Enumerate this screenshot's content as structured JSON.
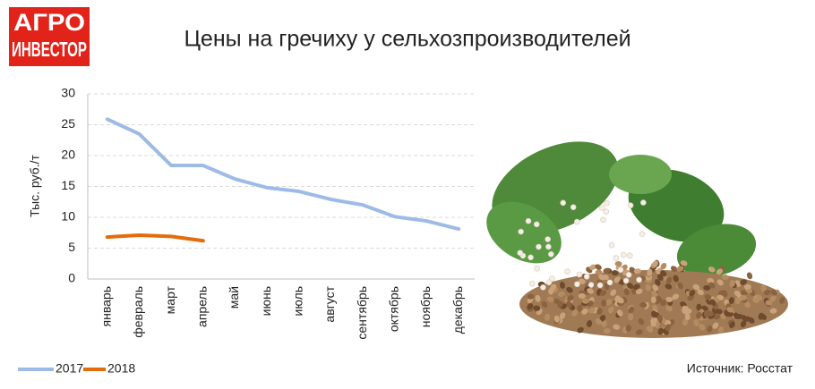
{
  "logo": {
    "line1": "АГРО",
    "line2": "ИНВЕСТОР"
  },
  "chart_data": {
    "type": "line",
    "title": "Цены на гречиху у сельхозпроизводителей",
    "y_label": "Тыс. руб./т",
    "source": "Источник: Росстат",
    "categories": [
      "январь",
      "февраль",
      "март",
      "апрель",
      "май",
      "июнь",
      "июль",
      "август",
      "сентябрь",
      "октябрь",
      "ноябрь",
      "декабрь"
    ],
    "series": [
      {
        "name": "2017",
        "color": "#9dbbe6",
        "values": [
          25.9,
          23.5,
          18.4,
          18.4,
          16.2,
          14.8,
          14.2,
          12.9,
          12.0,
          10.1,
          9.4,
          8.1
        ]
      },
      {
        "name": "2018",
        "color": "#e46c0a",
        "values": [
          6.8,
          7.1,
          6.9,
          6.2,
          null,
          null,
          null,
          null,
          null,
          null,
          null,
          null
        ]
      }
    ],
    "ylim": [
      0,
      30
    ],
    "yticks": [
      0,
      5,
      10,
      15,
      20,
      25,
      30
    ],
    "grid": true,
    "legend": "bottom-left"
  }
}
